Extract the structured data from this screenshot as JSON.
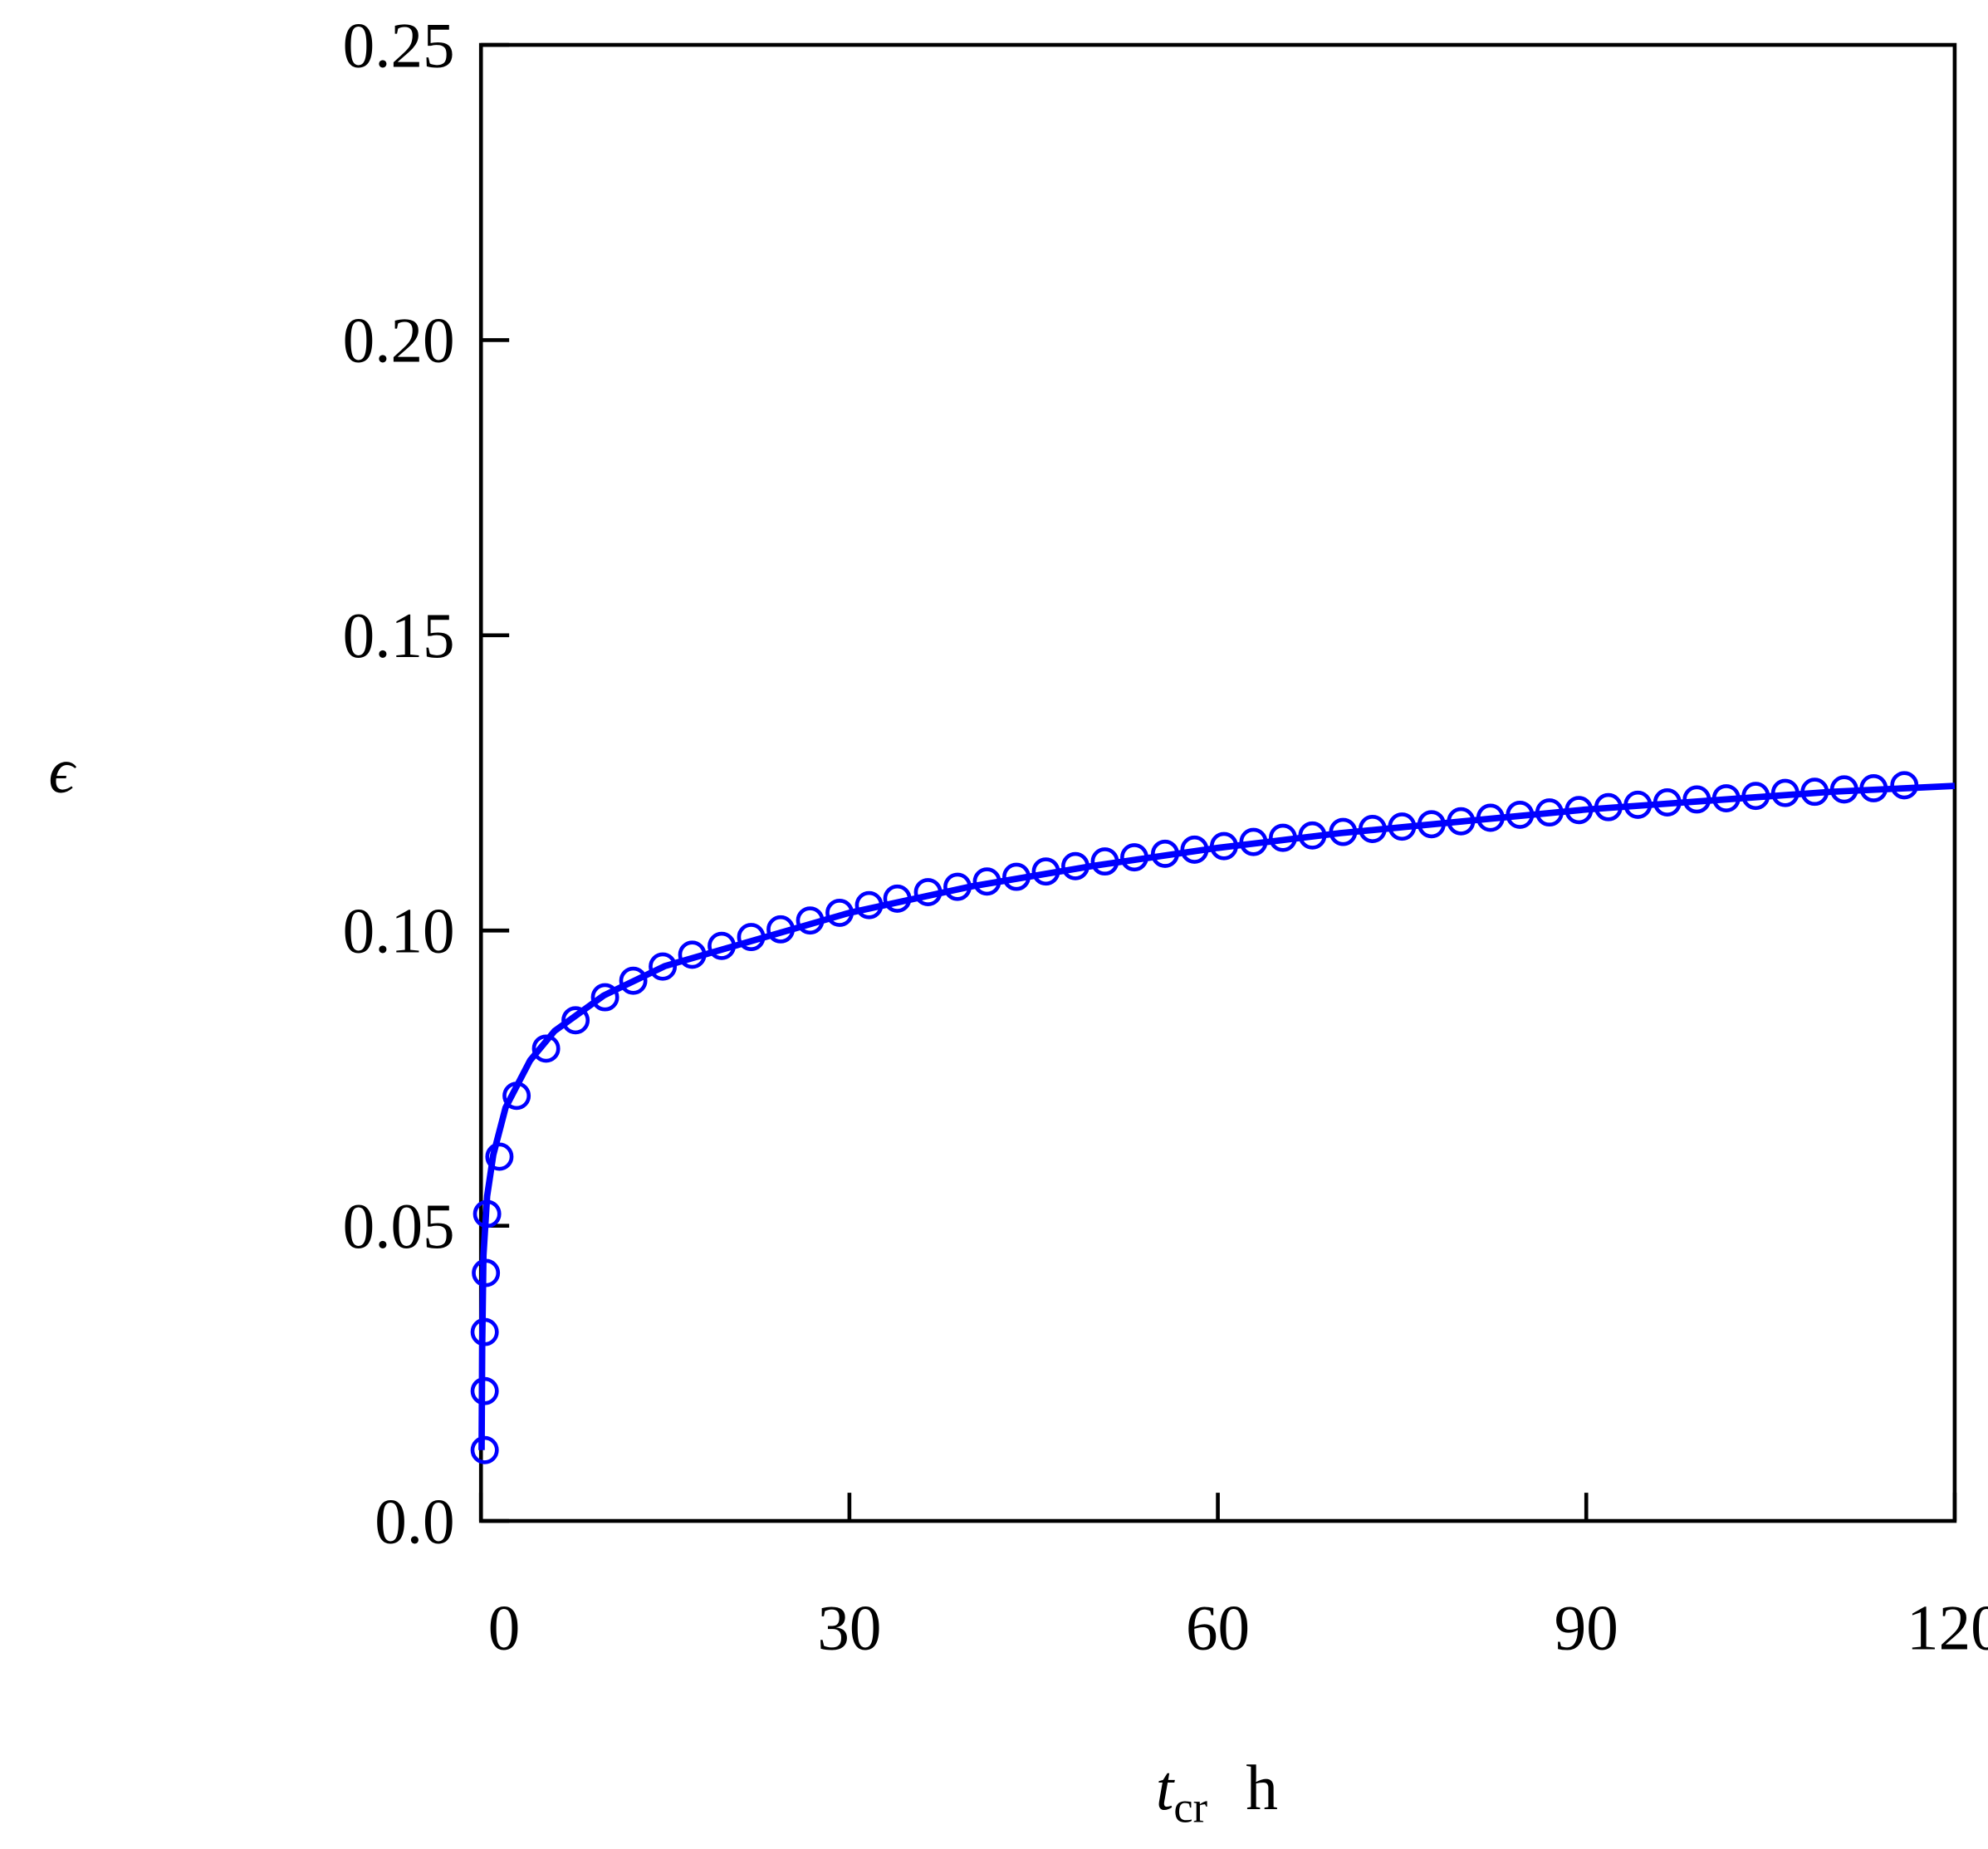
{
  "chart_data": {
    "type": "line",
    "y_label": "ϵ",
    "x_label": "t",
    "x_label_subscript": "cr",
    "x_label_unit": "h",
    "xlim": [
      0,
      120
    ],
    "ylim": [
      0,
      0.25
    ],
    "xticks": [
      0,
      30,
      60,
      90,
      120
    ],
    "yticks": [
      {
        "value": 0,
        "label": "0.0"
      },
      {
        "value": 0.05,
        "label": "0.05"
      },
      {
        "value": 0.1,
        "label": "0.10"
      },
      {
        "value": 0.15,
        "label": "0.15"
      },
      {
        "value": 0.2,
        "label": "0.20"
      },
      {
        "value": 0.25,
        "label": "0.25"
      }
    ],
    "grid": false,
    "series": [
      {
        "type": "scatter",
        "color": "#0000ff",
        "x": [
          0.3,
          0.3,
          0.3,
          0.4,
          0.5,
          1.5,
          2.9,
          5.3,
          7.7,
          10.1,
          12.4,
          14.8,
          17.2,
          19.6,
          22.0,
          24.4,
          26.8,
          29.2,
          31.6,
          33.9,
          36.4,
          38.8,
          41.2,
          43.6,
          46.0,
          48.4,
          50.8,
          53.2,
          55.7,
          58.1,
          60.5,
          62.9,
          65.3,
          67.7,
          70.2,
          72.6,
          75.0,
          77.4,
          79.8,
          82.2,
          84.6,
          87.0,
          89.4,
          91.8,
          94.2,
          96.6,
          99.0,
          101.4,
          103.8,
          106.2,
          108.6,
          111.0,
          113.4,
          115.9
        ],
        "values": [
          0.012,
          0.022,
          0.032,
          0.042,
          0.052,
          0.0617,
          0.072,
          0.08,
          0.0848,
          0.0887,
          0.0915,
          0.0939,
          0.0959,
          0.0974,
          0.0989,
          0.1002,
          0.1017,
          0.103,
          0.1043,
          0.1054,
          0.1065,
          0.1074,
          0.1083,
          0.1091,
          0.11,
          0.1109,
          0.1117,
          0.1124,
          0.113,
          0.1137,
          0.1143,
          0.115,
          0.1157,
          0.1161,
          0.1167,
          0.1172,
          0.1176,
          0.118,
          0.1185,
          0.1191,
          0.1196,
          0.12,
          0.1204,
          0.1209,
          0.1213,
          0.1217,
          0.1222,
          0.1224,
          0.1228,
          0.1233,
          0.1235,
          0.1239,
          0.1241,
          0.1246
        ]
      },
      {
        "type": "line",
        "color": "#0000ff",
        "x": [
          0.05,
          0.1,
          0.2,
          0.5,
          1,
          2,
          4,
          6,
          10,
          15,
          20,
          30,
          40,
          50,
          60,
          70,
          80,
          90,
          100,
          110,
          120
        ],
        "values": [
          0.012,
          0.03,
          0.045,
          0.055,
          0.062,
          0.07,
          0.078,
          0.083,
          0.089,
          0.094,
          0.097,
          0.103,
          0.1075,
          0.111,
          0.114,
          0.1165,
          0.1185,
          0.1205,
          0.122,
          0.1235,
          0.1245
        ]
      }
    ]
  }
}
